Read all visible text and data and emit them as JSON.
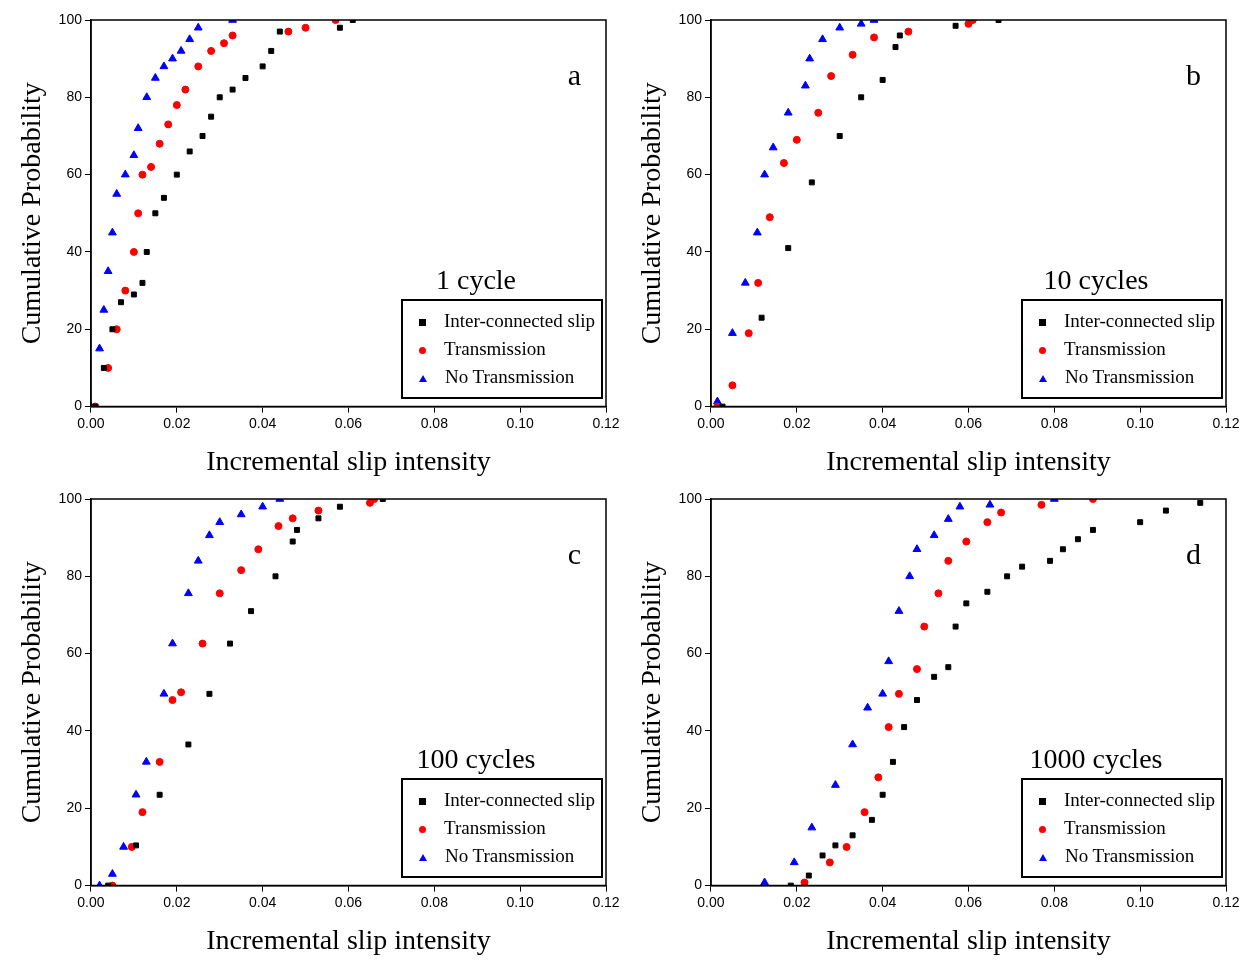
{
  "chart_data": [
    {
      "type": "scatter",
      "xlabel": "Incremental slip intensity",
      "ylabel": "Cumulative Probability",
      "xlim": [
        0,
        0.12
      ],
      "xticks": [
        {
          "value": 0,
          "label": "0.00"
        },
        {
          "value": 0.02,
          "label": "0.02"
        },
        {
          "value": 0.04,
          "label": "0.04"
        },
        {
          "value": 0.06,
          "label": "0.06"
        },
        {
          "value": 0.08,
          "label": "0.08"
        },
        {
          "value": 0.1,
          "label": "0.10"
        },
        {
          "value": 0.12,
          "label": "0.12"
        }
      ],
      "ylim": [
        0,
        100
      ],
      "yticks": [
        0,
        20,
        40,
        60,
        80,
        100
      ],
      "grid": false,
      "legend": "bottom right",
      "annotations": [
        "a",
        "1 cycle"
      ],
      "series": [
        {
          "name": "Inter-connected slip",
          "color": "#000000",
          "marker": "square",
          "x": [
            0.001,
            0.003,
            0.005,
            0.007,
            0.01,
            0.012,
            0.013,
            0.015,
            0.017,
            0.02,
            0.023,
            0.026,
            0.028,
            0.03,
            0.033,
            0.036,
            0.04,
            0.042,
            0.044,
            0.058,
            0.061
          ],
          "values": [
            0,
            10,
            20,
            27,
            29,
            32,
            40,
            50,
            54,
            60,
            66,
            70,
            75,
            80,
            82,
            85,
            88,
            92,
            97,
            98,
            100
          ]
        },
        {
          "name": "Transmission",
          "color": "#ff0000",
          "marker": "circle",
          "x": [
            0.001,
            0.004,
            0.006,
            0.008,
            0.01,
            0.011,
            0.012,
            0.014,
            0.016,
            0.018,
            0.02,
            0.022,
            0.025,
            0.028,
            0.031,
            0.033,
            0.046,
            0.05,
            0.057
          ],
          "values": [
            0,
            10,
            20,
            30,
            40,
            50,
            60,
            62,
            68,
            73,
            78,
            82,
            88,
            92,
            94,
            96,
            97,
            98,
            100
          ]
        },
        {
          "name": "No Transmission",
          "color": "#0000ff",
          "marker": "triangle",
          "x": [
            0.0,
            0.002,
            0.003,
            0.004,
            0.005,
            0.006,
            0.008,
            0.01,
            0.011,
            0.013,
            0.015,
            0.017,
            0.019,
            0.021,
            0.023,
            0.025,
            0.033
          ],
          "values": [
            0,
            15,
            25,
            35,
            45,
            55,
            60,
            65,
            72,
            80,
            85,
            88,
            90,
            92,
            95,
            98,
            100
          ]
        }
      ]
    },
    {
      "type": "scatter",
      "xlabel": "Incremental slip intensity",
      "ylabel": "Cumulative Probability",
      "xlim": [
        0,
        0.12
      ],
      "xticks": [
        {
          "value": 0,
          "label": "0.00"
        },
        {
          "value": 0.02,
          "label": "0.02"
        },
        {
          "value": 0.04,
          "label": "0.04"
        },
        {
          "value": 0.06,
          "label": "0.06"
        },
        {
          "value": 0.08,
          "label": "0.08"
        },
        {
          "value": 0.1,
          "label": "0.10"
        },
        {
          "value": 0.12,
          "label": "0.12"
        }
      ],
      "ylim": [
        0,
        100
      ],
      "yticks": [
        0,
        20,
        40,
        60,
        80,
        100
      ],
      "grid": false,
      "legend": "bottom right",
      "annotations": [
        "b",
        "10 cycles"
      ],
      "series": [
        {
          "name": "Inter-connected slip",
          "color": "#000000",
          "marker": "square",
          "x": [
            0.0027,
            0.0118,
            0.018,
            0.0235,
            0.03,
            0.035,
            0.04,
            0.043,
            0.044,
            0.057,
            0.067
          ],
          "values": [
            0,
            23,
            41,
            58,
            70,
            80,
            84.5,
            93,
            96,
            98.5,
            100
          ]
        },
        {
          "name": "Transmission",
          "color": "#ff0000",
          "marker": "circle",
          "x": [
            0.0015,
            0.005,
            0.0088,
            0.011,
            0.0137,
            0.017,
            0.02,
            0.025,
            0.028,
            0.033,
            0.038,
            0.046,
            0.06,
            0.061
          ],
          "values": [
            0,
            5.5,
            19,
            32,
            49,
            63,
            69,
            76,
            85.5,
            91,
            95.5,
            97,
            99,
            100
          ]
        },
        {
          "name": "No Transmission",
          "color": "#0000ff",
          "marker": "triangle",
          "x": [
            0.0015,
            0.005,
            0.008,
            0.0108,
            0.0125,
            0.0145,
            0.018,
            0.022,
            0.023,
            0.026,
            0.03,
            0.035,
            0.038
          ],
          "values": [
            1.3,
            19,
            32,
            45,
            60,
            67,
            76,
            83,
            90,
            95,
            98,
            99,
            100
          ]
        }
      ]
    },
    {
      "type": "scatter",
      "xlabel": "Incremental slip intensity",
      "ylabel": "Cumulative Probability",
      "xlim": [
        0,
        0.12
      ],
      "xticks": [
        {
          "value": 0,
          "label": "0.00"
        },
        {
          "value": 0.02,
          "label": "0.02"
        },
        {
          "value": 0.04,
          "label": "0.04"
        },
        {
          "value": 0.06,
          "label": "0.06"
        },
        {
          "value": 0.08,
          "label": "0.08"
        },
        {
          "value": 0.1,
          "label": "0.10"
        },
        {
          "value": 0.12,
          "label": "0.12"
        }
      ],
      "ylim": [
        0,
        100
      ],
      "yticks": [
        0,
        20,
        40,
        60,
        80,
        100
      ],
      "grid": false,
      "legend": "bottom right",
      "annotations": [
        "c",
        "100 cycles"
      ],
      "series": [
        {
          "name": "Inter-connected slip",
          "color": "#000000",
          "marker": "square",
          "x": [
            0.004,
            0.0105,
            0.016,
            0.0227,
            0.0276,
            0.0324,
            0.0373,
            0.043,
            0.047,
            0.048,
            0.053,
            0.058,
            0.068
          ],
          "values": [
            0,
            10.4,
            23.5,
            36.5,
            49.6,
            62.6,
            71,
            80,
            89,
            92,
            95,
            98,
            100
          ]
        },
        {
          "name": "Transmission",
          "color": "#ff0000",
          "marker": "circle",
          "x": [
            0.005,
            0.0095,
            0.012,
            0.016,
            0.019,
            0.021,
            0.026,
            0.03,
            0.035,
            0.039,
            0.0437,
            0.047,
            0.053,
            0.065,
            0.066
          ],
          "values": [
            0,
            10,
            19,
            32,
            48,
            50,
            62.6,
            75.6,
            81.6,
            87,
            93,
            95,
            97,
            99,
            100
          ]
        },
        {
          "name": "No Transmission",
          "color": "#0000ff",
          "marker": "triangle",
          "x": [
            0.002,
            0.005,
            0.0076,
            0.0105,
            0.0129,
            0.017,
            0.019,
            0.0227,
            0.025,
            0.0276,
            0.03,
            0.035,
            0.04,
            0.044
          ],
          "values": [
            0,
            3,
            10,
            23.5,
            32,
            49.6,
            62.6,
            75.6,
            84,
            90.6,
            94,
            96,
            98,
            100
          ]
        }
      ]
    },
    {
      "type": "scatter",
      "xlabel": "Incremental slip intensity",
      "ylabel": "Cumulative Probability",
      "xlim": [
        0,
        0.12
      ],
      "xticks": [
        {
          "value": 0,
          "label": "0.00"
        },
        {
          "value": 0.02,
          "label": "0.02"
        },
        {
          "value": 0.04,
          "label": "0.04"
        },
        {
          "value": 0.06,
          "label": "0.06"
        },
        {
          "value": 0.08,
          "label": "0.08"
        },
        {
          "value": 0.1,
          "label": "0.10"
        },
        {
          "value": 0.12,
          "label": "0.12"
        }
      ],
      "ylim": [
        0,
        100
      ],
      "yticks": [
        0,
        20,
        40,
        60,
        80,
        100
      ],
      "grid": false,
      "legend": "bottom right",
      "annotations": [
        "d",
        "1000 cycles"
      ],
      "series": [
        {
          "name": "Inter-connected slip",
          "color": "#000000",
          "marker": "square",
          "x": [
            0.0186,
            0.0228,
            0.026,
            0.029,
            0.033,
            0.0375,
            0.04,
            0.0424,
            0.045,
            0.048,
            0.052,
            0.0553,
            0.057,
            0.0595,
            0.0644,
            0.069,
            0.0725,
            0.079,
            0.082,
            0.0855,
            0.089,
            0.1,
            0.106,
            0.114
          ],
          "values": [
            0,
            2.6,
            7.8,
            10.4,
            13,
            17,
            23.5,
            32,
            41,
            48,
            54,
            56.5,
            67,
            73,
            76,
            80,
            82.5,
            84,
            87,
            89.6,
            92,
            94,
            97,
            99
          ]
        },
        {
          "name": "Transmission",
          "color": "#ff0000",
          "marker": "circle",
          "x": [
            0.0218,
            0.0277,
            0.0316,
            0.0358,
            0.039,
            0.0414,
            0.0438,
            0.048,
            0.0497,
            0.053,
            0.0553,
            0.0595,
            0.0644,
            0.0676,
            0.077,
            0.089
          ],
          "values": [
            0.8,
            6,
            10,
            19,
            28,
            41,
            49.6,
            56,
            67,
            75.6,
            84,
            89,
            94,
            96.5,
            98.5,
            100
          ]
        },
        {
          "name": "No Transmission",
          "color": "#0000ff",
          "marker": "triangle",
          "x": [
            0.0125,
            0.0194,
            0.0235,
            0.029,
            0.033,
            0.0365,
            0.04,
            0.0414,
            0.0438,
            0.0463,
            0.048,
            0.052,
            0.0553,
            0.058,
            0.065,
            0.08
          ],
          "values": [
            0.8,
            6,
            15,
            26,
            36.5,
            46,
            49.6,
            58,
            71,
            80,
            87,
            90.6,
            94.8,
            98,
            98.5,
            100
          ]
        }
      ]
    }
  ]
}
